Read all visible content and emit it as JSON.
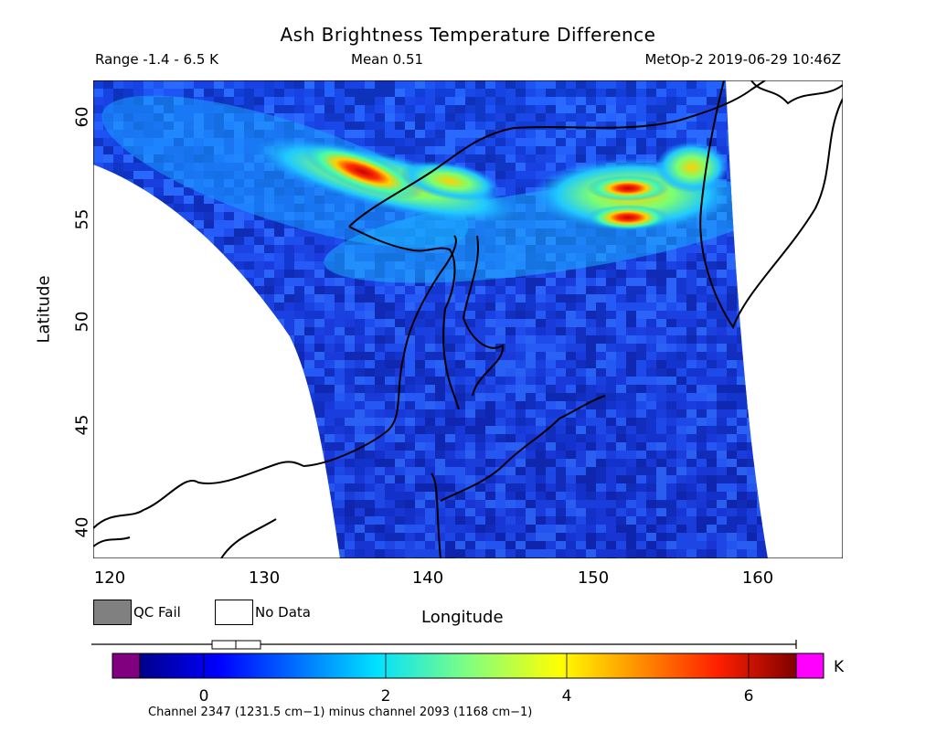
{
  "header": {
    "title": "Ash Brightness Temperature Difference",
    "range": "Range -1.4 - 6.5 K",
    "mean": "Mean 0.51",
    "satellite_time": "MetOp-2 2019-06-29 10:46Z"
  },
  "map": {
    "xlabel": "Longitude",
    "ylabel": "Latitude",
    "x_ticks": [
      "120",
      "130",
      "140",
      "150",
      "160"
    ],
    "y_ticks": [
      "60",
      "55",
      "50",
      "45",
      "40"
    ],
    "lon_range": [
      119,
      165
    ],
    "lat_range": [
      38.7,
      61.8
    ],
    "background_color": "#ffffff",
    "swath_base_color": "#1f3ee0",
    "ash_plume_colors": [
      "#00d8ff",
      "#8cff70",
      "#ffe000",
      "#ff8c00",
      "#ff2000",
      "#c80000"
    ]
  },
  "legend": {
    "qc_fail_label": "QC Fail",
    "no_data_label": "No Data",
    "qc_fail_color": "#808080",
    "no_data_color": "#ffffff"
  },
  "colorbar": {
    "ticks": [
      "0",
      "2",
      "4",
      "6"
    ],
    "unit": "K",
    "min_value": -1.4,
    "max_value": 6.5,
    "underflow_color": "#800080",
    "overflow_color": "#ff00ff",
    "footnote": "Channel 2347 (1231.5 cm−1) minus channel 2093 (1168 cm−1)"
  }
}
